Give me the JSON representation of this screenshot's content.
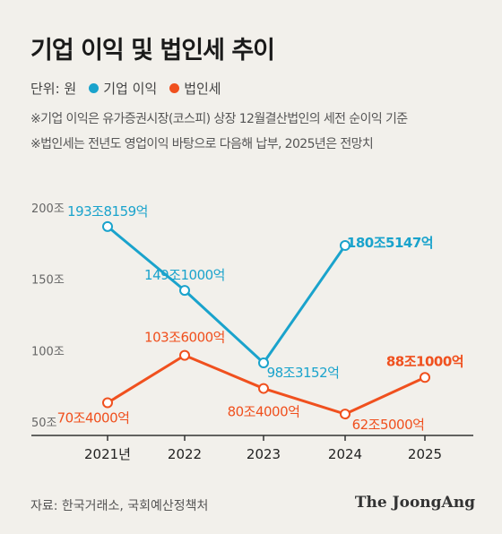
{
  "header": {
    "title": "기업 이익 및 법인세 추이",
    "unit_label": "단위: 원",
    "notes": [
      "※기업 이익은 유가증권시장(코스피) 상장 12월결산법인의 세전 순이익 기준",
      "※법인세는 전년도 영업이익 바탕으로 다음해 납부, 2025년은 전망치"
    ]
  },
  "footer": {
    "source": "자료: 한국거래소, 국회예산정책처",
    "brand": "The JoongAng"
  },
  "colors": {
    "background": "#f2f0eb",
    "profit": "#1aa3cc",
    "tax": "#f0501e",
    "axis": "#333333",
    "grid": "#d6d3cc"
  },
  "chart_data": {
    "type": "line",
    "x": [
      "2021년",
      "2022",
      "2023",
      "2024",
      "2025"
    ],
    "ylim": [
      50,
      200
    ],
    "y_ticks": [
      {
        "value": 200,
        "label": "200조"
      },
      {
        "value": 150,
        "label": "150조"
      },
      {
        "value": 100,
        "label": "100조"
      },
      {
        "value": 50,
        "label": "50조"
      }
    ],
    "grid": false,
    "legend": "top-left",
    "series": [
      {
        "name": "기업 이익",
        "color": "#1aa3cc",
        "values": [
          193.8159,
          149.1,
          98.3152,
          180.5147,
          null
        ],
        "labels": [
          "193조8159억",
          "149조1000억",
          "98조3152억",
          "180조5147억",
          null
        ]
      },
      {
        "name": "법인세",
        "color": "#f0501e",
        "values": [
          70.4,
          103.6,
          80.4,
          62.5,
          88.1
        ],
        "labels": [
          "70조4000억",
          "103조6000억",
          "80조4000억",
          "62조5000억",
          "88조1000억"
        ]
      }
    ]
  }
}
